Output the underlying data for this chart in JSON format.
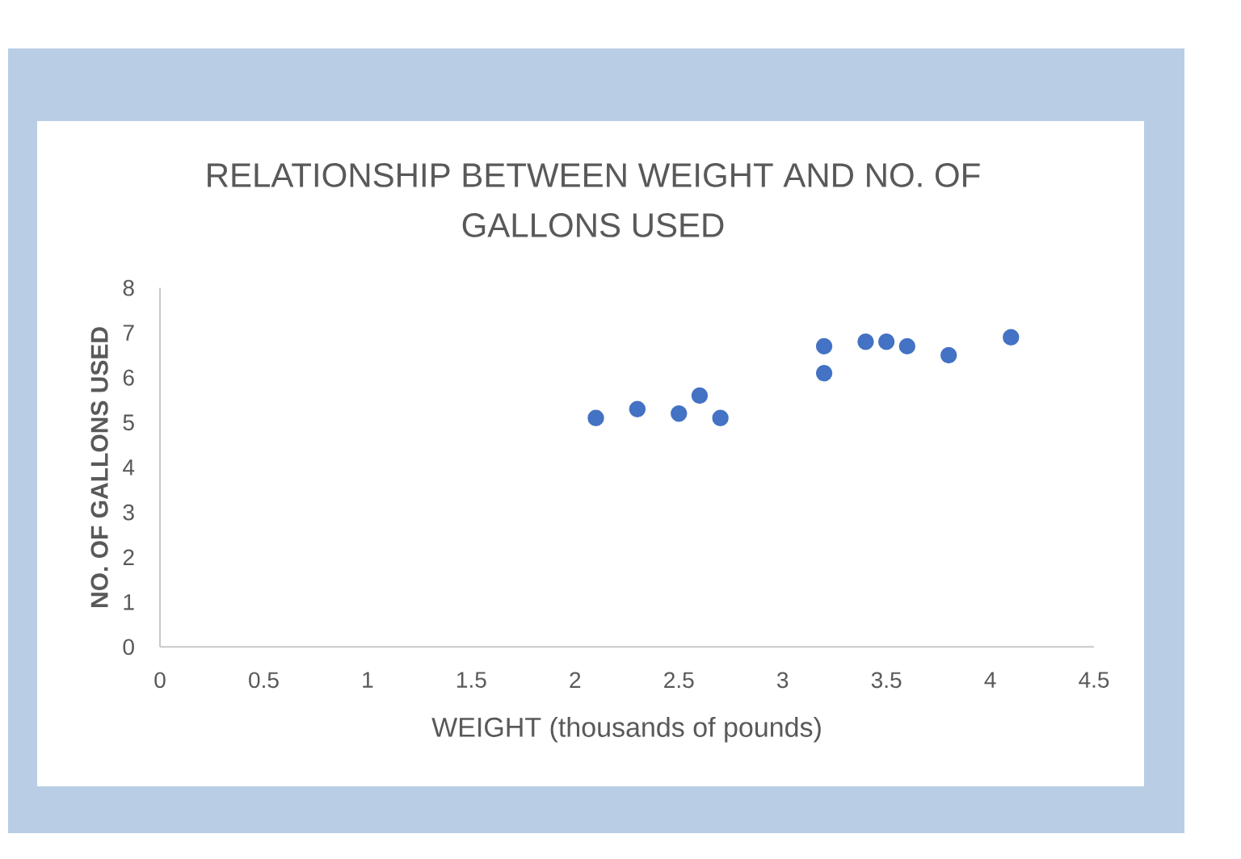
{
  "chart_data": {
    "type": "scatter",
    "title": "RELATIONSHIP BETWEEN WEIGHT AND NO. OF GALLONS USED",
    "xlabel": "WEIGHT (thousands of pounds)",
    "ylabel": "NO. OF GALLONS USED",
    "x": [
      2.1,
      2.3,
      2.5,
      2.6,
      2.7,
      3.2,
      3.2,
      3.4,
      3.5,
      3.6,
      3.8,
      4.1
    ],
    "values": [
      5.1,
      5.3,
      5.2,
      5.6,
      5.1,
      6.7,
      6.1,
      6.8,
      6.8,
      6.7,
      6.5,
      6.9
    ],
    "color": "#4472c4",
    "marker": "circle",
    "xlim": [
      0,
      4.5
    ],
    "ylim": [
      0,
      8
    ],
    "xticks": [
      0,
      0.5,
      1,
      1.5,
      2,
      2.5,
      3,
      3.5,
      4,
      4.5
    ],
    "yticks": [
      0,
      1,
      2,
      3,
      4,
      5,
      6,
      7,
      8
    ]
  }
}
